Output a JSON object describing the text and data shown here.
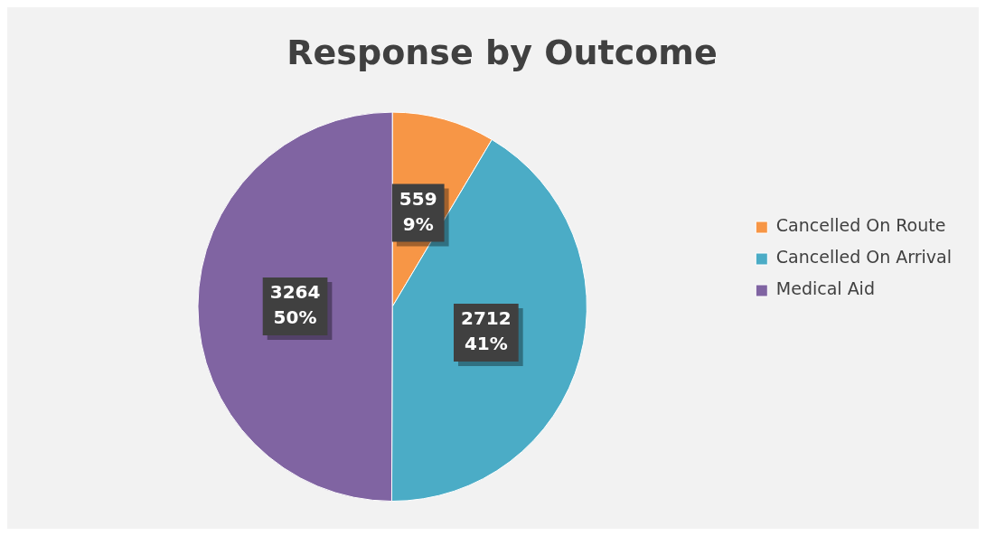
{
  "chart_data": {
    "type": "pie",
    "title": "Response by Outcome",
    "categories": [
      "Cancelled On Route",
      "Cancelled On Arrival",
      "Medical Aid"
    ],
    "values": [
      559,
      2712,
      3264
    ],
    "colors": [
      "#f79646",
      "#4bacc6",
      "#8064a2"
    ],
    "value_labels": [
      "559\n9%",
      "2712\n41%",
      "3264\n50%"
    ],
    "legend": "right"
  }
}
